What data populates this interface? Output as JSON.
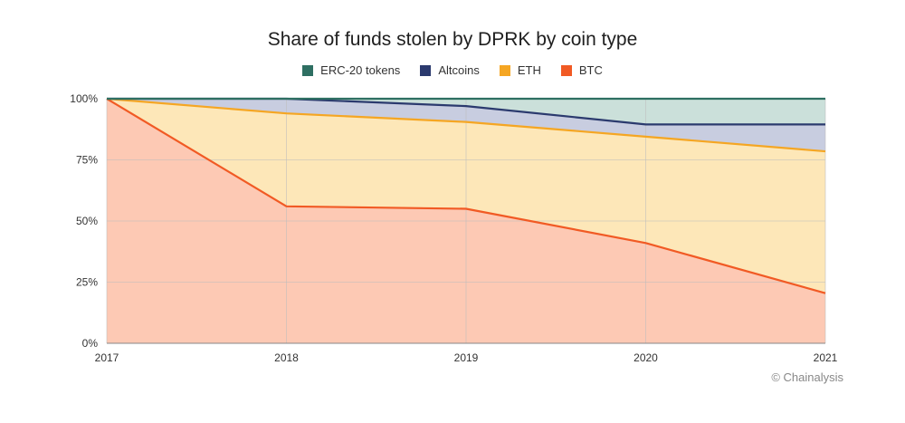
{
  "chart_data": {
    "type": "area",
    "stacked": true,
    "percent": true,
    "title": "Share of funds stolen by DPRK by coin type",
    "x": [
      "2017",
      "2018",
      "2019",
      "2020",
      "2021"
    ],
    "xlabel": "",
    "ylabel": "",
    "ylim": [
      0,
      100
    ],
    "yticks": [
      "0%",
      "25%",
      "50%",
      "75%",
      "100%"
    ],
    "legend_position": "top-center",
    "grid": true,
    "series": [
      {
        "name": "BTC",
        "values": [
          100,
          56,
          55,
          41,
          20.5
        ],
        "color": "#f15a24",
        "fill": "#fdc9b4"
      },
      {
        "name": "ETH",
        "values": [
          0,
          38,
          35.5,
          43.5,
          58
        ],
        "color": "#f5a623",
        "fill": "#fde7b8"
      },
      {
        "name": "Altcoins",
        "values": [
          0,
          6,
          6.5,
          5,
          11
        ],
        "color": "#2b3a6e",
        "fill": "#c8cde0"
      },
      {
        "name": "ERC-20 tokens",
        "values": [
          0,
          0,
          3,
          10.5,
          10.5
        ],
        "color": "#2e6f62",
        "fill": "#cbe0da"
      }
    ],
    "legend_order": [
      "ERC-20 tokens",
      "Altcoins",
      "ETH",
      "BTC"
    ]
  },
  "credit": "© Chainalysis"
}
